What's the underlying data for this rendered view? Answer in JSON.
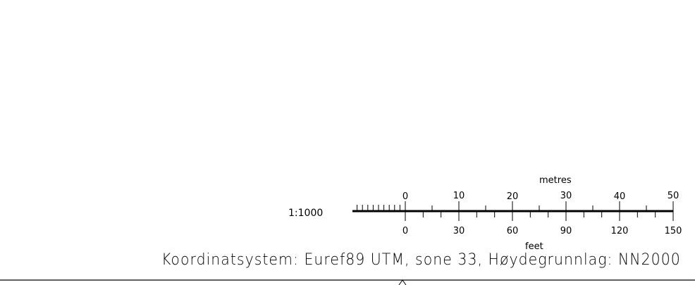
{
  "scalebar": {
    "ratio": "1:1000",
    "metres_label": "metres",
    "feet_label": "feet",
    "metres_ticks": [
      "0",
      "10",
      "20",
      "30",
      "40",
      "50"
    ],
    "feet_ticks": [
      "0",
      "30",
      "60",
      "90",
      "120",
      "150"
    ],
    "metres_max": 50,
    "feet_max": 150
  },
  "footer": {
    "coordinate_text": "Koordinatsystem: Euref89 UTM, sone 33, Høydegrunnlag: NN2000"
  }
}
